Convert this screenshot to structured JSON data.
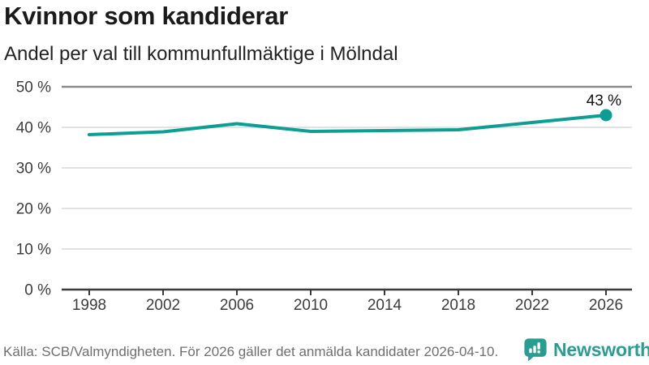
{
  "header": {
    "title": "Kvinnor som kandiderar",
    "subtitle": "Andel per val till kommunfullmäktige i Mölndal"
  },
  "chart_data": {
    "type": "line",
    "title": "Kvinnor som kandiderar",
    "subtitle": "Andel per val till kommunfullmäktige i Mölndal",
    "x": [
      1998,
      2002,
      2006,
      2010,
      2014,
      2018,
      2022,
      2026
    ],
    "values": [
      38.2,
      38.9,
      40.9,
      39.0,
      39.2,
      39.4,
      41.2,
      43.0
    ],
    "xtick_labels": [
      "1998",
      "2002",
      "2006",
      "2010",
      "2014",
      "2018",
      "2022",
      "2026"
    ],
    "yticks": [
      0,
      10,
      20,
      30,
      40,
      50
    ],
    "ytick_labels": [
      "0 %",
      "10 %",
      "20 %",
      "30 %",
      "40 %",
      "50 %"
    ],
    "ylim": [
      0,
      50
    ],
    "grid": true,
    "legend": "none",
    "end_label": "43 %",
    "last_point_marker": true,
    "line_color": "#0d9e93"
  },
  "colors": {
    "accent": "#0d9e93",
    "grid_light": "#e2e2e2",
    "grid_top": "#8a8a8a",
    "axis": "#3a3a3a",
    "text_dark": "#1a1a1a",
    "text_gray": "#6f6f6f",
    "brand": "#2a9d93"
  },
  "footer": {
    "source": "Källa: SCB/Valmyndigheten. För 2026 gäller det anmälda kandidater 2026-04-10.",
    "brand_name": "Newsworthy"
  }
}
